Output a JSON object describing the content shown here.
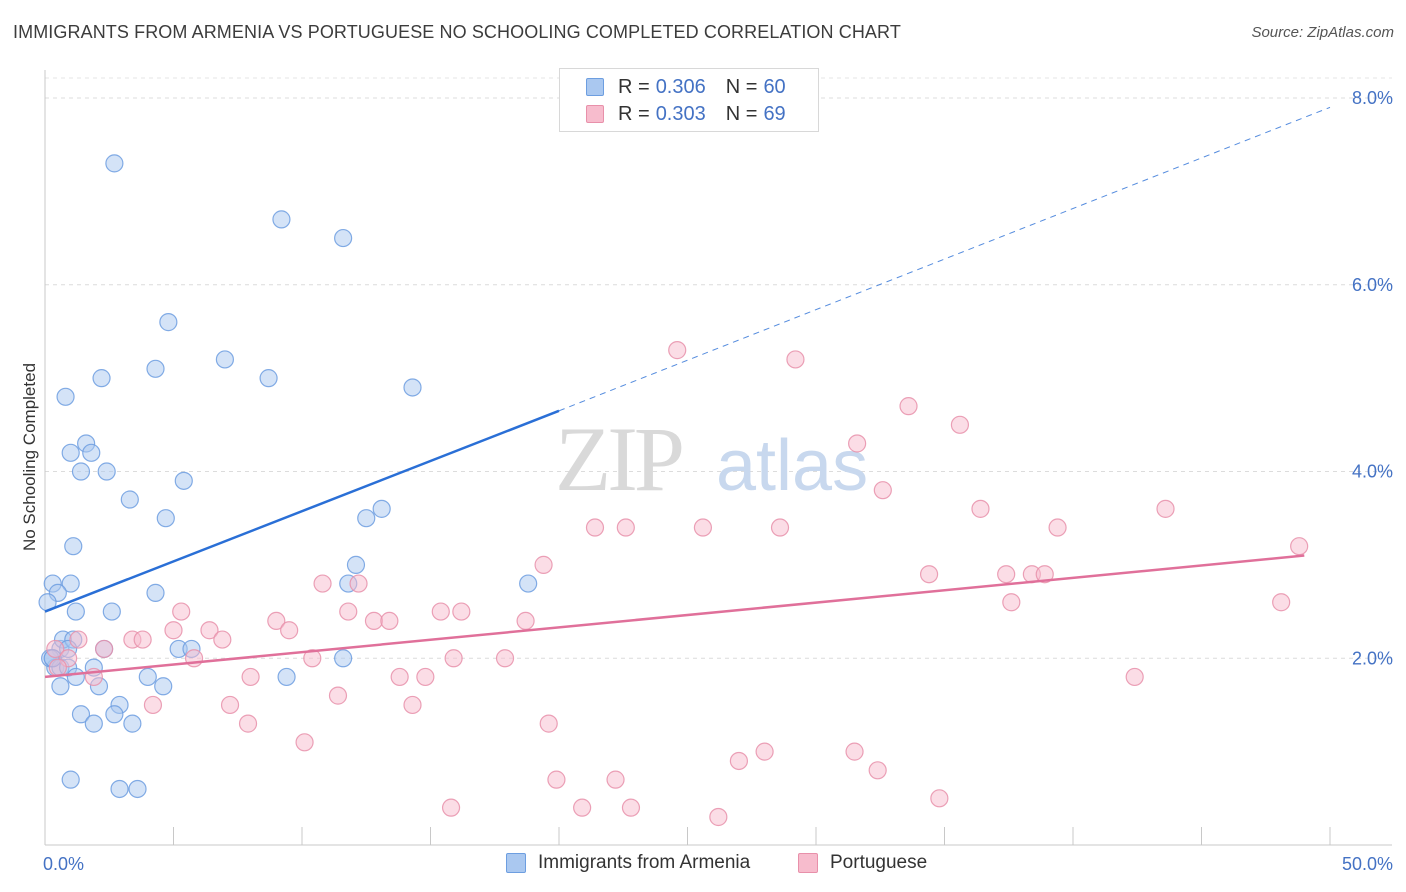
{
  "title": "IMMIGRANTS FROM ARMENIA VS PORTUGUESE NO SCHOOLING COMPLETED CORRELATION CHART",
  "source": "Source: ZipAtlas.com",
  "watermark": {
    "zip": "ZIP",
    "atlas": "atlas"
  },
  "legend": {
    "rows": [
      {
        "r_label": "R =",
        "r_value": "0.306",
        "n_label": "N =",
        "n_value": "60",
        "color": "#aac8f0",
        "border": "#6d9ee0"
      },
      {
        "r_label": "R =",
        "r_value": "0.303",
        "n_label": "N =",
        "n_value": "69",
        "color": "#f7bccd",
        "border": "#e890aa"
      }
    ]
  },
  "bottom_legend": [
    {
      "label": "Immigrants from Armenia",
      "color": "#aac8f0",
      "border": "#6d9ee0"
    },
    {
      "label": "Portuguese",
      "color": "#f7bccd",
      "border": "#e890aa"
    }
  ],
  "chart_data": {
    "type": "scatter",
    "ylabel": "No Schooling Completed",
    "xlabel": "",
    "xlim": [
      0,
      50
    ],
    "ylim": [
      0,
      8.3
    ],
    "x_tick_labels": [
      "0.0%",
      "50.0%"
    ],
    "y_ticks": [
      2,
      4,
      6,
      8
    ],
    "y_tick_labels": [
      "2.0%",
      "4.0%",
      "6.0%",
      "8.0%"
    ],
    "grid": "horizontal dashed",
    "legend_position": "top-center",
    "series": [
      {
        "name": "Immigrants from Armenia",
        "color": "#6d9ee0",
        "fill": "#aac8f0",
        "trend": {
          "x0": 0,
          "y0": 2.5,
          "x1": 20,
          "y1": 4.65,
          "dash_to_x": 50,
          "dash_to_y": 7.9,
          "color": "#2a6fd6"
        },
        "points": [
          [
            2.7,
            7.3
          ],
          [
            9.2,
            6.7
          ],
          [
            11.6,
            6.5
          ],
          [
            4.8,
            5.6
          ],
          [
            7.0,
            5.2
          ],
          [
            4.3,
            5.1
          ],
          [
            2.2,
            5.0
          ],
          [
            8.7,
            5.0
          ],
          [
            14.3,
            4.9
          ],
          [
            0.8,
            4.8
          ],
          [
            1.0,
            4.2
          ],
          [
            1.6,
            4.3
          ],
          [
            1.8,
            4.2
          ],
          [
            1.4,
            4.0
          ],
          [
            2.4,
            4.0
          ],
          [
            5.4,
            3.9
          ],
          [
            3.3,
            3.7
          ],
          [
            4.7,
            3.5
          ],
          [
            12.5,
            3.5
          ],
          [
            13.1,
            3.6
          ],
          [
            1.1,
            3.2
          ],
          [
            12.1,
            3.0
          ],
          [
            0.3,
            2.8
          ],
          [
            1.0,
            2.8
          ],
          [
            11.8,
            2.8
          ],
          [
            18.8,
            2.8
          ],
          [
            0.5,
            2.7
          ],
          [
            4.3,
            2.7
          ],
          [
            0.1,
            2.6
          ],
          [
            1.2,
            2.5
          ],
          [
            2.6,
            2.5
          ],
          [
            0.6,
            2.1
          ],
          [
            0.7,
            2.2
          ],
          [
            1.1,
            2.2
          ],
          [
            0.3,
            2.0
          ],
          [
            0.4,
            1.9
          ],
          [
            0.9,
            2.1
          ],
          [
            2.3,
            2.1
          ],
          [
            5.2,
            2.1
          ],
          [
            5.7,
            2.1
          ],
          [
            0.2,
            2.0
          ],
          [
            0.6,
            1.9
          ],
          [
            0.9,
            1.9
          ],
          [
            1.9,
            1.9
          ],
          [
            11.6,
            2.0
          ],
          [
            1.2,
            1.8
          ],
          [
            4.0,
            1.8
          ],
          [
            4.6,
            1.7
          ],
          [
            9.4,
            1.8
          ],
          [
            0.6,
            1.7
          ],
          [
            2.1,
            1.7
          ],
          [
            2.9,
            1.5
          ],
          [
            2.7,
            1.4
          ],
          [
            1.4,
            1.4
          ],
          [
            1.9,
            1.3
          ],
          [
            3.4,
            1.3
          ],
          [
            1.0,
            0.7
          ],
          [
            2.9,
            0.6
          ],
          [
            3.6,
            0.6
          ],
          [
            0.3,
            2.0
          ]
        ]
      },
      {
        "name": "Portuguese",
        "color": "#e890aa",
        "fill": "#f7bccd",
        "trend": {
          "x0": 0,
          "y0": 1.8,
          "x1": 49,
          "y1": 3.1,
          "color": "#e0709a"
        },
        "points": [
          [
            24.6,
            5.3
          ],
          [
            29.2,
            5.2
          ],
          [
            33.6,
            4.7
          ],
          [
            35.6,
            4.5
          ],
          [
            31.6,
            4.3
          ],
          [
            32.6,
            3.8
          ],
          [
            36.4,
            3.6
          ],
          [
            43.6,
            3.6
          ],
          [
            21.4,
            3.4
          ],
          [
            22.6,
            3.4
          ],
          [
            25.6,
            3.4
          ],
          [
            28.6,
            3.4
          ],
          [
            39.4,
            3.4
          ],
          [
            48.8,
            3.2
          ],
          [
            19.4,
            3.0
          ],
          [
            37.4,
            2.9
          ],
          [
            34.4,
            2.9
          ],
          [
            38.4,
            2.9
          ],
          [
            38.9,
            2.9
          ],
          [
            10.8,
            2.8
          ],
          [
            12.2,
            2.8
          ],
          [
            37.6,
            2.6
          ],
          [
            48.1,
            2.6
          ],
          [
            5.3,
            2.5
          ],
          [
            11.8,
            2.5
          ],
          [
            15.4,
            2.5
          ],
          [
            16.2,
            2.5
          ],
          [
            9.0,
            2.4
          ],
          [
            12.8,
            2.4
          ],
          [
            13.4,
            2.4
          ],
          [
            18.7,
            2.4
          ],
          [
            6.4,
            2.3
          ],
          [
            5.0,
            2.3
          ],
          [
            3.4,
            2.2
          ],
          [
            3.8,
            2.2
          ],
          [
            6.9,
            2.2
          ],
          [
            9.5,
            2.3
          ],
          [
            1.3,
            2.2
          ],
          [
            0.4,
            2.1
          ],
          [
            2.3,
            2.1
          ],
          [
            0.9,
            2.0
          ],
          [
            10.4,
            2.0
          ],
          [
            15.9,
            2.0
          ],
          [
            17.9,
            2.0
          ],
          [
            5.8,
            2.0
          ],
          [
            0.5,
            1.9
          ],
          [
            8.0,
            1.8
          ],
          [
            1.9,
            1.8
          ],
          [
            13.8,
            1.8
          ],
          [
            14.8,
            1.8
          ],
          [
            42.4,
            1.8
          ],
          [
            11.4,
            1.6
          ],
          [
            14.3,
            1.5
          ],
          [
            4.2,
            1.5
          ],
          [
            7.2,
            1.5
          ],
          [
            7.9,
            1.3
          ],
          [
            19.6,
            1.3
          ],
          [
            10.1,
            1.1
          ],
          [
            28.0,
            1.0
          ],
          [
            27.0,
            0.9
          ],
          [
            31.5,
            1.0
          ],
          [
            32.4,
            0.8
          ],
          [
            19.9,
            0.7
          ],
          [
            22.2,
            0.7
          ],
          [
            34.8,
            0.5
          ],
          [
            20.9,
            0.4
          ],
          [
            22.8,
            0.4
          ],
          [
            15.8,
            0.4
          ],
          [
            26.2,
            0.3
          ]
        ]
      }
    ]
  }
}
